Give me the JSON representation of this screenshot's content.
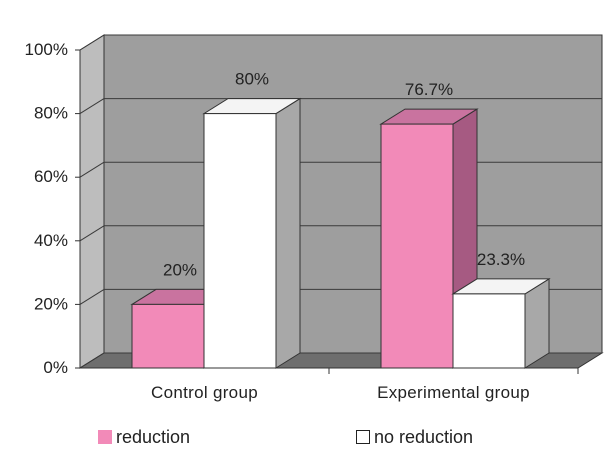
{
  "chart_data": {
    "type": "bar",
    "categories": [
      "Control group",
      "Experimental group"
    ],
    "series": [
      {
        "name": "reduction",
        "values": [
          20,
          76.7
        ],
        "labels": [
          "20%",
          "76.7%"
        ],
        "color": "#f28ab8",
        "side_color": "#a65a82",
        "top_color": "#c9739f"
      },
      {
        "name": "no reduction",
        "values": [
          80,
          23.3
        ],
        "labels": [
          "80%",
          "23.3%"
        ],
        "color": "#ffffff",
        "side_color": "#a8a8a8",
        "top_color": "#f4f4f4"
      }
    ],
    "y_ticks": [
      "0%",
      "20%",
      "40%",
      "60%",
      "80%",
      "100%"
    ],
    "ylim": [
      0,
      100
    ],
    "grid": true,
    "legend_position": "bottom",
    "title": "",
    "xlabel": "",
    "ylabel": "",
    "colors": {
      "wall": "#9e9e9e",
      "floor": "#6e6e6e",
      "grid": "#3a3a3a"
    }
  }
}
